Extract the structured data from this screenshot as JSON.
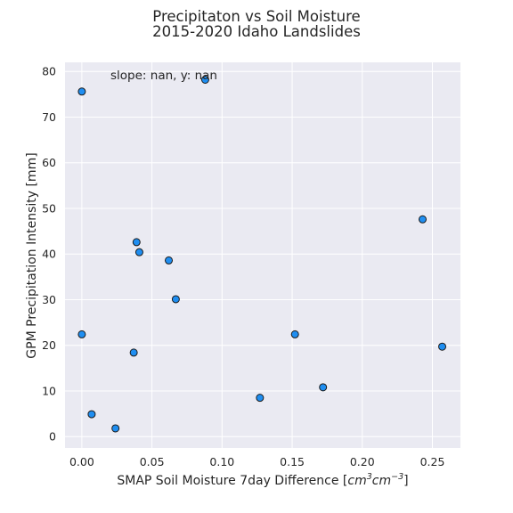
{
  "chart_data": {
    "type": "scatter",
    "title": "Precipitaton vs Soil Moisture",
    "subtitle": "2015-2020 Idaho Landslides",
    "xlabel": "SMAP Soil Moisture 7day Difference [cm3cm−3]",
    "xlabel_parts": {
      "prefix": "SMAP Soil Moisture 7day Difference [",
      "cm": "cm",
      "exp1": "3",
      "cm2": "cm",
      "exp2": "−3",
      "suffix": "]"
    },
    "ylabel": "GPM Precipitation Intensity [mm]",
    "annotation": "slope: nan, y: nan",
    "xlim": [
      -0.012,
      0.27
    ],
    "ylim": [
      -2.5,
      82
    ],
    "xticks": [
      "0.00",
      "0.05",
      "0.10",
      "0.15",
      "0.20",
      "0.25"
    ],
    "xtick_values": [
      0,
      0.05,
      0.1,
      0.15,
      0.2,
      0.25
    ],
    "yticks": [
      "0",
      "10",
      "20",
      "30",
      "40",
      "50",
      "60",
      "70",
      "80"
    ],
    "ytick_values": [
      0,
      10,
      20,
      30,
      40,
      50,
      60,
      70,
      80
    ],
    "grid": true,
    "points": [
      {
        "x": 0.0,
        "y": 75.6
      },
      {
        "x": 0.088,
        "y": 78.2
      },
      {
        "x": 0.039,
        "y": 42.6
      },
      {
        "x": 0.041,
        "y": 40.4
      },
      {
        "x": 0.062,
        "y": 38.6
      },
      {
        "x": 0.067,
        "y": 30.1
      },
      {
        "x": 0.0,
        "y": 22.4
      },
      {
        "x": 0.037,
        "y": 18.4
      },
      {
        "x": 0.007,
        "y": 4.9
      },
      {
        "x": 0.024,
        "y": 1.8
      },
      {
        "x": 0.127,
        "y": 8.5
      },
      {
        "x": 0.152,
        "y": 22.4
      },
      {
        "x": 0.172,
        "y": 10.8
      },
      {
        "x": 0.243,
        "y": 47.6
      },
      {
        "x": 0.257,
        "y": 19.7
      }
    ]
  },
  "colors": {
    "plot_background": "#eaeaf2",
    "grid": "#ffffff",
    "marker_fill": "#1f8ef1",
    "marker_edge": "#1a1a1a",
    "text": "#262626"
  }
}
